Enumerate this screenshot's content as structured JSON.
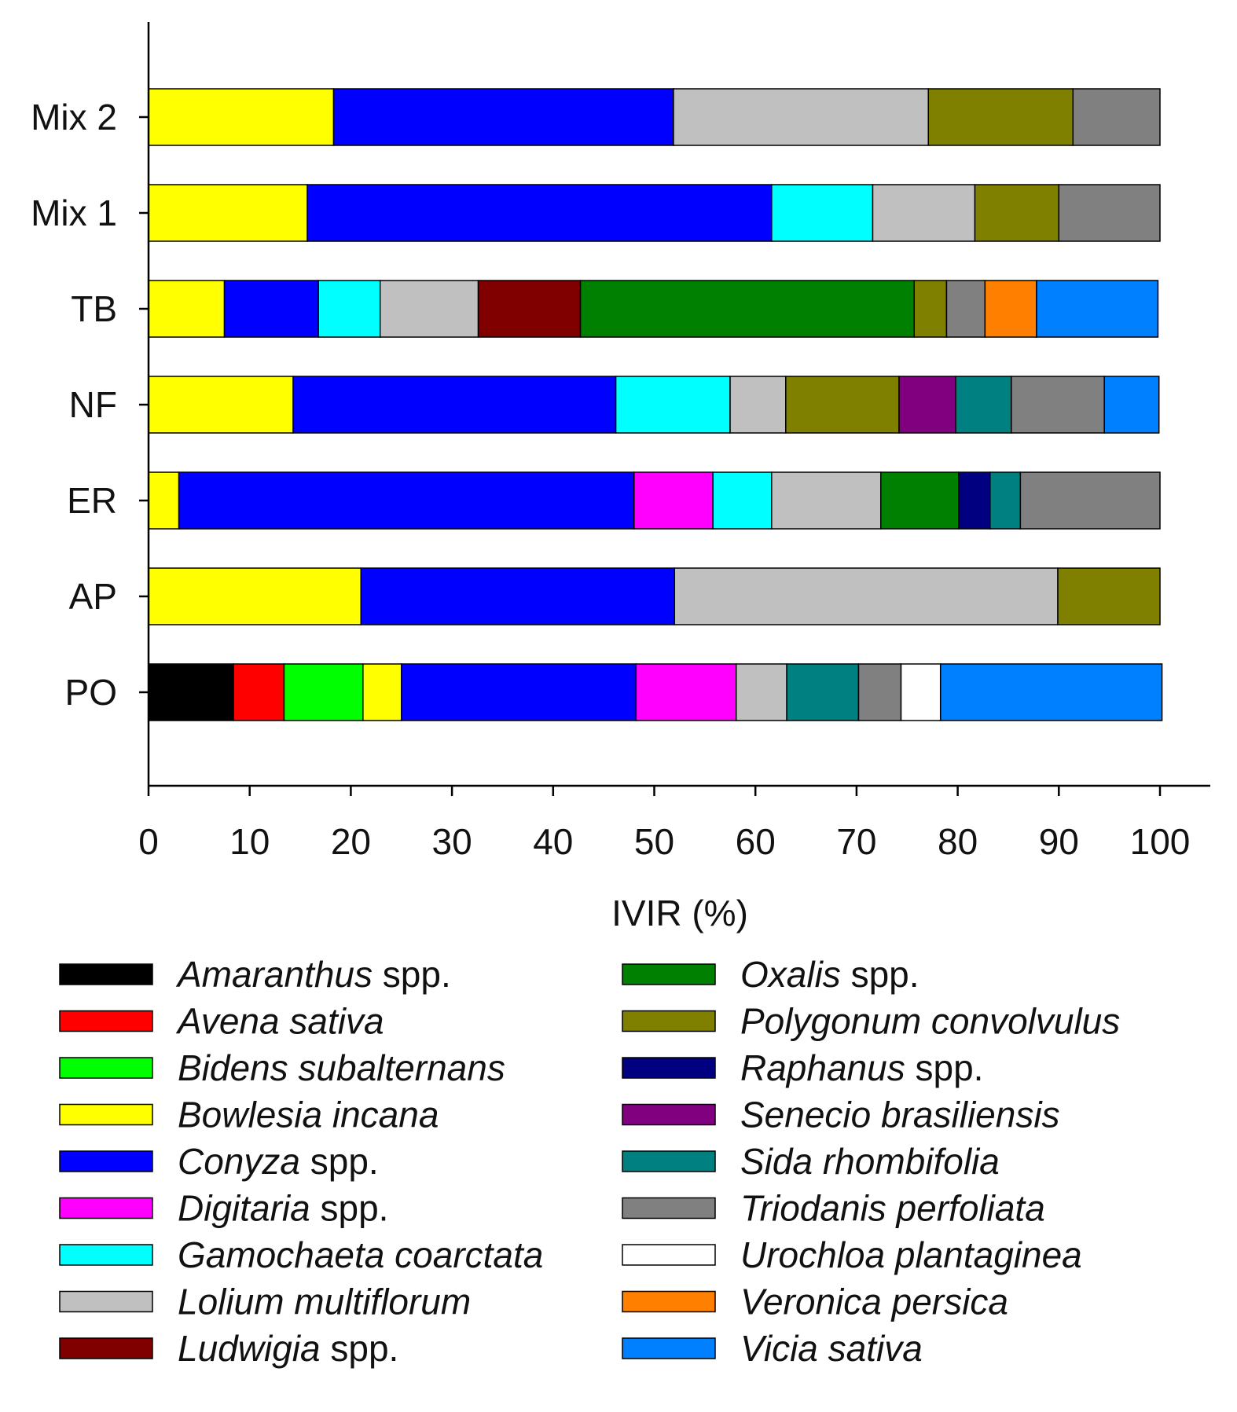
{
  "chart_data": {
    "type": "bar",
    "orientation": "horizontal",
    "stacked": true,
    "xlabel": "IVIR (%)",
    "ylabel": "",
    "xlim": [
      0,
      100
    ],
    "xticks": [
      "0",
      "10",
      "20",
      "30",
      "40",
      "50",
      "60",
      "70",
      "80",
      "90",
      "100"
    ],
    "categories": [
      "Mix 2",
      "Mix 1",
      "TB",
      "NF",
      "ER",
      "AP",
      "PO"
    ],
    "grid": false,
    "legend_position": "bottom",
    "series": [
      {
        "name": "Amaranthus spp.",
        "name_italic": "Amaranthus",
        "name_plain": " spp.",
        "color": "#000000",
        "values": [
          0,
          0,
          0,
          0,
          0,
          0,
          8.4
        ]
      },
      {
        "name": "Avena sativa",
        "name_italic": "Avena sativa",
        "name_plain": "",
        "color": "#ff0000",
        "values": [
          0,
          0,
          0,
          0,
          0,
          0,
          5.0
        ]
      },
      {
        "name": "Bidens subalternans",
        "name_italic": "Bidens subalternans",
        "name_plain": "",
        "color": "#00ff00",
        "values": [
          0,
          0,
          0,
          0,
          0,
          0,
          7.8
        ]
      },
      {
        "name": "Bowlesia incana",
        "name_italic": "Bowlesia incana",
        "name_plain": "",
        "color": "#ffff00",
        "values": [
          18.3,
          15.7,
          7.5,
          14.3,
          3.0,
          21.0,
          3.8
        ]
      },
      {
        "name": "Conyza spp.",
        "name_italic": "Conyza",
        "name_plain": " spp.",
        "color": "#0000ff",
        "values": [
          33.6,
          45.9,
          9.3,
          31.9,
          45.0,
          31.0,
          23.2
        ]
      },
      {
        "name": "Digitaria spp.",
        "name_italic": "Digitaria",
        "name_plain": " spp.",
        "color": "#ff00ff",
        "values": [
          0,
          0,
          0,
          0,
          7.8,
          0,
          9.9
        ]
      },
      {
        "name": "Gamochaeta coarctata",
        "name_italic": "Gamochaeta coarctata",
        "name_plain": "",
        "color": "#00ffff",
        "values": [
          0,
          10.0,
          6.1,
          11.3,
          5.8,
          0,
          0
        ]
      },
      {
        "name": "Lolium multiflorum",
        "name_italic": "Lolium multiflorum",
        "name_plain": "",
        "color": "#c0c0c0",
        "values": [
          25.2,
          10.1,
          9.7,
          5.5,
          10.8,
          37.9,
          5.0
        ]
      },
      {
        "name": "Ludwigia spp.",
        "name_italic": "Ludwigia",
        "name_plain": " spp.",
        "color": "#800000",
        "values": [
          0,
          0,
          10.1,
          0,
          0,
          0,
          0
        ]
      },
      {
        "name": "Oxalis spp.",
        "name_italic": "Oxalis",
        "name_plain": " spp.",
        "color": "#008000",
        "values": [
          0,
          0,
          33.0,
          0,
          7.7,
          0,
          0
        ]
      },
      {
        "name": "Polygonum convolvulus",
        "name_italic": "Polygonum convolvulus",
        "name_plain": "",
        "color": "#808000",
        "values": [
          14.3,
          8.3,
          3.2,
          11.2,
          0,
          10.1,
          0
        ]
      },
      {
        "name": "Raphanus spp.",
        "name_italic": "Raphanus",
        "name_plain": " spp.",
        "color": "#000080",
        "values": [
          0,
          0,
          0,
          0,
          3.1,
          0,
          0
        ]
      },
      {
        "name": "Senecio brasiliensis",
        "name_italic": "Senecio brasiliensis",
        "name_plain": "",
        "color": "#800080",
        "values": [
          0,
          0,
          0,
          5.6,
          0,
          0,
          0
        ]
      },
      {
        "name": "Sida rhombifolia",
        "name_italic": "Sida rhombifolia",
        "name_plain": "",
        "color": "#008080",
        "values": [
          0,
          0,
          0,
          5.5,
          3.0,
          0,
          7.1
        ]
      },
      {
        "name": "Triodanis perfoliata",
        "name_italic": "Triodanis perfoliata",
        "name_plain": "",
        "color": "#808080",
        "values": [
          8.6,
          10.0,
          3.8,
          9.2,
          13.8,
          0,
          4.2
        ]
      },
      {
        "name": "Urochloa plantaginea",
        "name_italic": "Urochloa plantaginea",
        "name_plain": "",
        "color": "#ffffff",
        "values": [
          0,
          0,
          0,
          0,
          0,
          0,
          3.9
        ]
      },
      {
        "name": "Veronica persica",
        "name_italic": "Veronica persica",
        "name_plain": "",
        "color": "#ff8000",
        "values": [
          0,
          0,
          5.1,
          0,
          0,
          0,
          0
        ]
      },
      {
        "name": "Vicia sativa",
        "name_italic": "Vicia sativa",
        "name_plain": "",
        "color": "#0080ff",
        "values": [
          0,
          0,
          12.0,
          5.4,
          0,
          0,
          21.9
        ]
      }
    ]
  }
}
